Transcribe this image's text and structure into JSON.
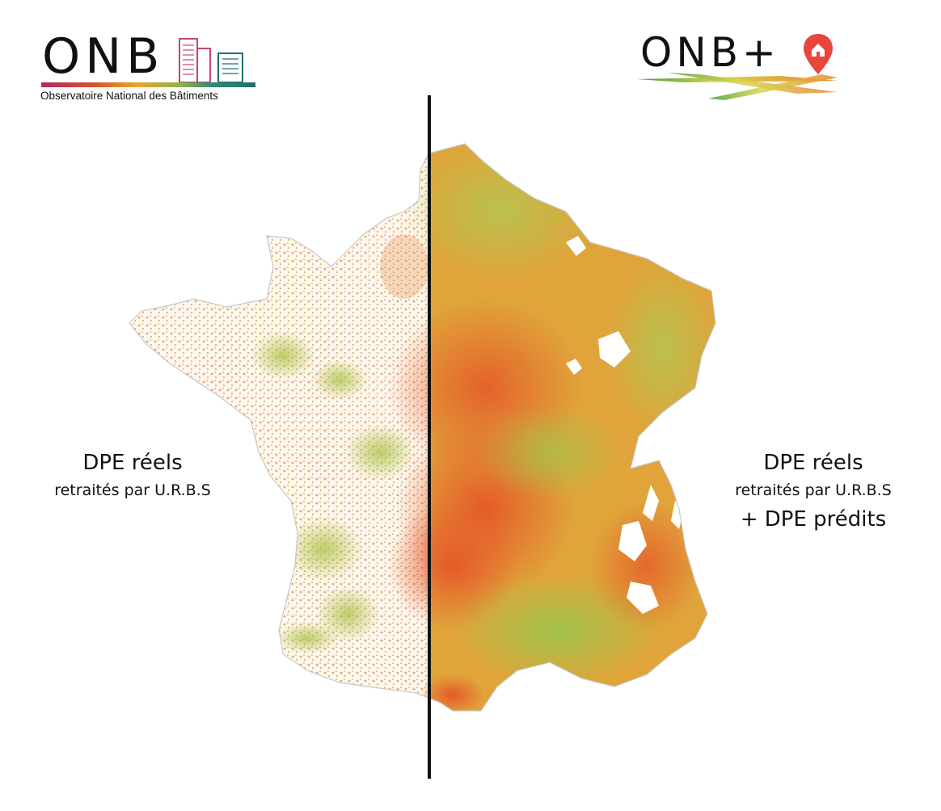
{
  "logos": {
    "left": {
      "word": "ONB",
      "subtitle": "Observatoire National des Bâtiments"
    },
    "right": {
      "word": "ONB+"
    }
  },
  "left_panel": {
    "title": "DPE réels",
    "subtitle": "retraités par U.R.B.S"
  },
  "right_panel": {
    "title": "DPE réels",
    "subtitle": "retraités par U.R.B.S",
    "extra": "+ DPE prédits"
  },
  "colors": {
    "green": "#9fc24a",
    "yellow": "#e0b23a",
    "orange": "#e9862f",
    "red_orange": "#e55a2a",
    "pin": "#e8453c"
  }
}
